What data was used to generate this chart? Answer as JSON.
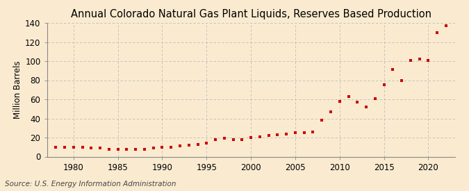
{
  "title": "Annual Colorado Natural Gas Plant Liquids, Reserves Based Production",
  "ylabel": "Million Barrels",
  "source": "Source: U.S. Energy Information Administration",
  "background_color": "#faebd0",
  "marker_color": "#cc0000",
  "years": [
    1978,
    1979,
    1980,
    1981,
    1982,
    1983,
    1984,
    1985,
    1986,
    1987,
    1988,
    1989,
    1990,
    1991,
    1992,
    1993,
    1994,
    1995,
    1996,
    1997,
    1998,
    1999,
    2000,
    2001,
    2002,
    2003,
    2004,
    2005,
    2006,
    2007,
    2008,
    2009,
    2010,
    2011,
    2012,
    2013,
    2014,
    2015,
    2016,
    2017,
    2018,
    2019,
    2020,
    2021,
    2022
  ],
  "values": [
    10,
    10,
    10,
    10,
    9,
    9,
    8,
    8,
    8,
    8,
    8,
    9,
    10,
    10,
    11,
    12,
    13,
    14,
    18,
    19,
    18,
    18,
    20,
    21,
    22,
    23,
    24,
    25,
    25,
    26,
    38,
    47,
    58,
    63,
    57,
    52,
    61,
    75,
    91,
    80,
    101,
    102,
    101,
    130,
    137
  ],
  "xlim": [
    1977,
    2023
  ],
  "ylim": [
    0,
    140
  ],
  "yticks": [
    0,
    20,
    40,
    60,
    80,
    100,
    120,
    140
  ],
  "xticks": [
    1980,
    1985,
    1990,
    1995,
    2000,
    2005,
    2010,
    2015,
    2020
  ],
  "title_fontsize": 10.5,
  "label_fontsize": 8.5,
  "tick_fontsize": 8.5,
  "source_fontsize": 7.5
}
